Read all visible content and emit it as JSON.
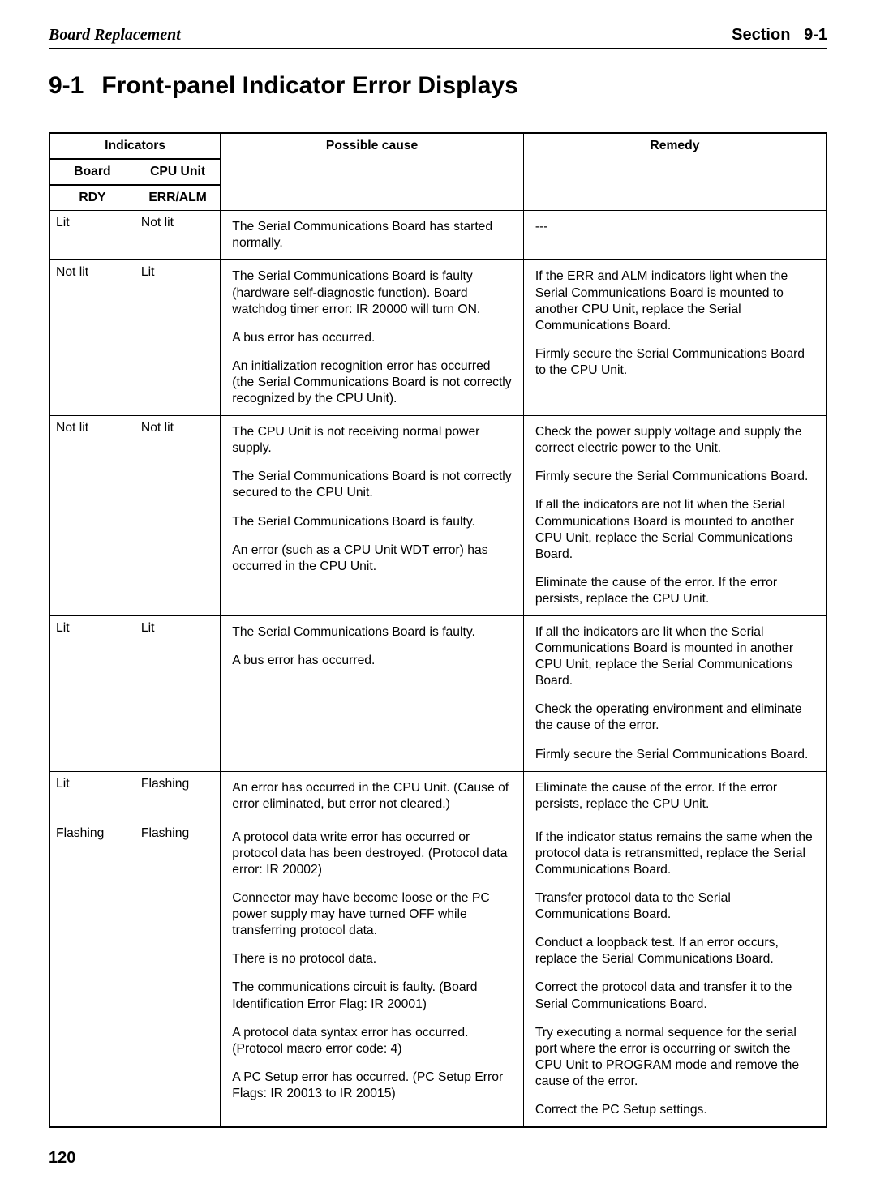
{
  "header": {
    "left": "Board Replacement",
    "section_label": "Section",
    "section_num": "9-1"
  },
  "title": {
    "number": "9-1",
    "text": "Front-panel Indicator Error Displays"
  },
  "col_headers": {
    "indicators": "Indicators",
    "board": "Board",
    "rdy": "RDY",
    "cpu_unit": "CPU Unit",
    "err_alm": "ERR/ALM",
    "cause": "Possible cause",
    "remedy": "Remedy"
  },
  "rows": [
    {
      "board": "Lit",
      "cpu": "Not lit",
      "causes": [
        "The Serial Communications Board has started normally."
      ],
      "remedies": [
        "---"
      ]
    },
    {
      "board": "Not lit",
      "cpu": "Lit",
      "causes": [
        "The Serial Communications Board is faulty (hardware self-diagnostic function). Board watchdog timer error: IR 20000 will turn ON.",
        "A bus error has occurred.",
        "An initialization recognition error has occurred (the Serial Communications Board is not correctly recognized by the CPU Unit)."
      ],
      "remedies": [
        "If the ERR and ALM indicators light when the Serial Communications Board is mounted to another CPU Unit, replace the Serial Communications Board.",
        "Firmly secure the Serial Communications Board to the CPU Unit."
      ]
    },
    {
      "board": "Not lit",
      "cpu": "Not lit",
      "causes": [
        "The CPU Unit is not receiving normal power supply.",
        "The Serial Communications Board is not correctly secured to the CPU Unit.",
        "The Serial Communications Board is faulty.",
        "An error (such as a CPU Unit WDT error) has occurred in the CPU Unit."
      ],
      "remedies": [
        "Check the power supply voltage and supply the correct electric power to the Unit.",
        "Firmly secure the Serial Communications Board.",
        "If all the indicators are not lit when the Serial Communications Board is mounted to another CPU Unit, replace the Serial Communications Board.",
        "Eliminate the cause of the error. If the error persists, replace the CPU Unit."
      ]
    },
    {
      "board": "Lit",
      "cpu": "Lit",
      "causes": [
        "The Serial Communications Board is faulty.",
        "A bus error has occurred."
      ],
      "remedies": [
        "If all the indicators are lit when the Serial Communications Board is mounted in another CPU Unit, replace the Serial Communications Board.",
        "Check the operating environment and eliminate the cause of the error.",
        "Firmly secure the Serial Communications Board."
      ]
    },
    {
      "board": "Lit",
      "cpu": "Flashing",
      "causes": [
        "An error has occurred in the CPU Unit. (Cause of error eliminated, but error not cleared.)"
      ],
      "remedies": [
        "Eliminate the cause of the error. If the error persists, replace the CPU Unit."
      ]
    },
    {
      "board": "Flashing",
      "cpu": "Flashing",
      "causes": [
        "A protocol data write error has occurred or protocol data has been destroyed. (Protocol data error: IR 20002)",
        "Connector may have become loose or the PC power supply may have turned OFF while transferring protocol data.",
        "There is no protocol data.",
        "The communications circuit is faulty. (Board Identification Error Flag: IR 20001)",
        "A protocol data syntax error has occurred. (Protocol macro error code: 4)",
        "A PC Setup error has occurred. (PC Setup Error Flags: IR 20013 to IR 20015)"
      ],
      "remedies": [
        "If the indicator status remains the same when the protocol data is retransmitted, replace the Serial Communications Board.",
        "Transfer protocol data to the Serial Communications Board.",
        "Conduct a loopback test. If an error occurs, replace the Serial Communications Board.",
        "Correct the protocol data and transfer it to the Serial Communications Board.",
        "Try executing a normal sequence for the serial port where the error is occurring or switch the CPU Unit to PROGRAM mode and remove the cause of the error.",
        "Correct the PC Setup settings."
      ]
    }
  ],
  "page_number": "120"
}
